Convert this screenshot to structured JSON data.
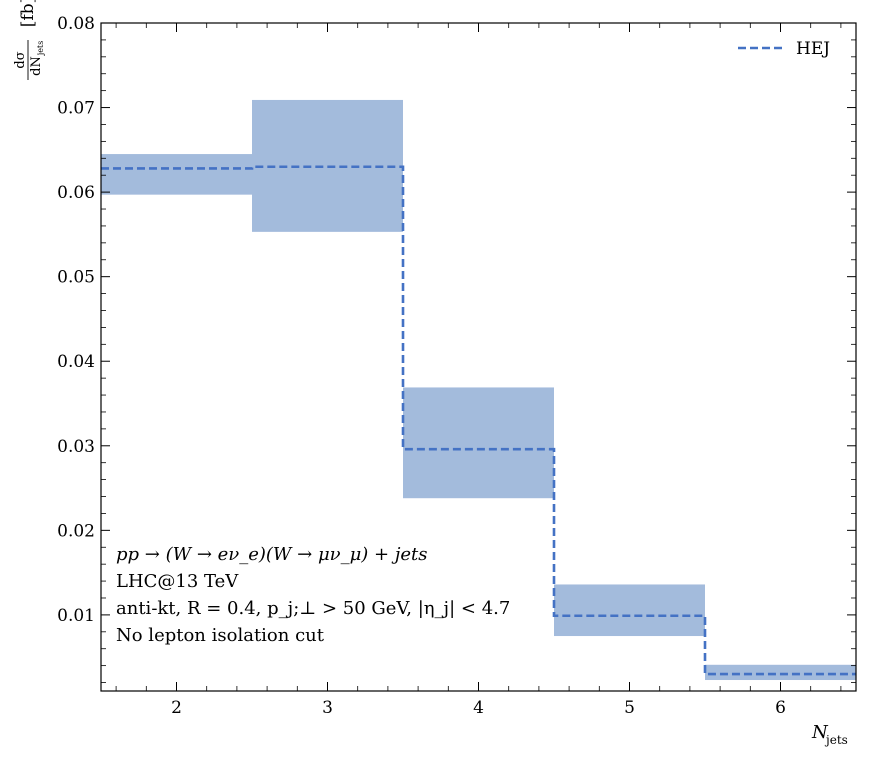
{
  "chart_data": {
    "type": "step",
    "xlabel": "N",
    "xlabel_sub": "jets",
    "ylabel_num": "dσ",
    "ylabel_den": "dN",
    "ylabel_den_sub": "jets",
    "ylabel_unit": "[fb]",
    "xlim": [
      1.5,
      6.5
    ],
    "ylim": [
      0.001,
      0.08
    ],
    "xticks": [
      2,
      3,
      4,
      5,
      6
    ],
    "xtick_labels": [
      "2",
      "3",
      "4",
      "5",
      "6"
    ],
    "yticks": [
      0.01,
      0.02,
      0.03,
      0.04,
      0.05,
      0.06,
      0.07,
      0.08
    ],
    "ytick_labels": [
      "0.01",
      "0.02",
      "0.03",
      "0.04",
      "0.05",
      "0.06",
      "0.07",
      "0.08"
    ],
    "bins": [
      {
        "x_low": 1.5,
        "x_high": 2.5,
        "value": 0.0628,
        "band_low": 0.0597,
        "band_high": 0.0645
      },
      {
        "x_low": 2.5,
        "x_high": 3.5,
        "value": 0.063,
        "band_low": 0.0553,
        "band_high": 0.0709
      },
      {
        "x_low": 3.5,
        "x_high": 4.5,
        "value": 0.0296,
        "band_low": 0.0238,
        "band_high": 0.0369
      },
      {
        "x_low": 4.5,
        "x_high": 5.5,
        "value": 0.0099,
        "band_low": 0.0075,
        "band_high": 0.0136
      },
      {
        "x_low": 5.5,
        "x_high": 6.5,
        "value": 0.003,
        "band_low": 0.0023,
        "band_high": 0.0041
      }
    ],
    "series": [
      {
        "name": "HEJ",
        "color": "#4472c4",
        "band_color": "#a3bbdc",
        "style": "dashed"
      }
    ],
    "legend_position": "top-right",
    "grid": false,
    "annotations": [
      "pp → (W → eν_e)(W → μν_μ) + jets",
      "LHC@13 TeV",
      "anti-kt, R = 0.4, p_j;⊥ > 50 GeV, |η_j| < 4.7",
      "No lepton isolation cut"
    ]
  }
}
